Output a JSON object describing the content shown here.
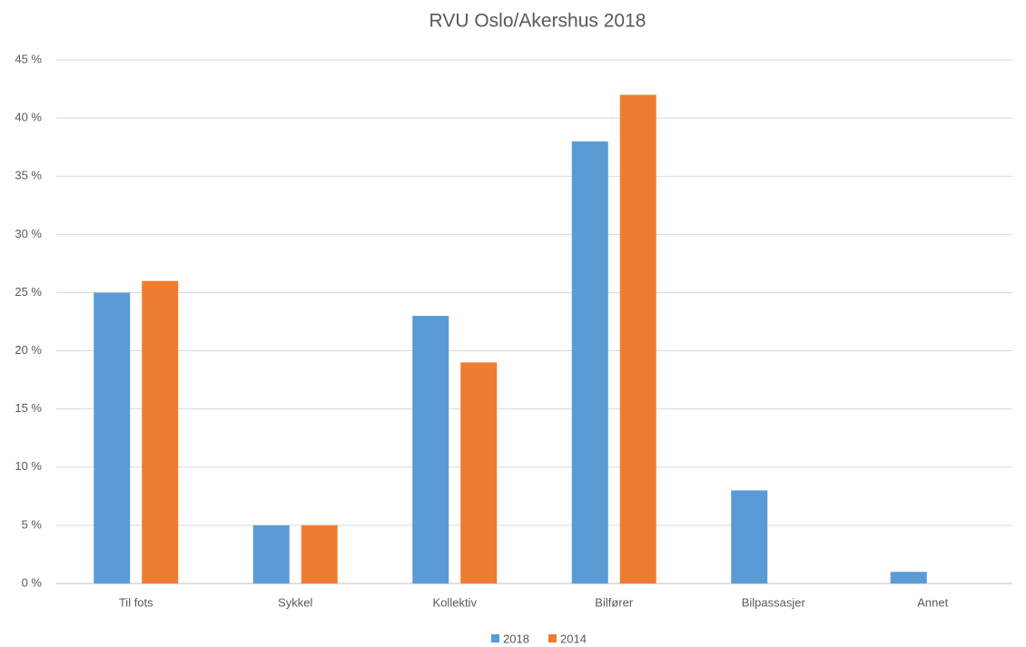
{
  "chart_data": {
    "type": "bar",
    "title": "RVU Oslo/Akershus 2018",
    "categories": [
      "Til fots",
      "Sykkel",
      "Kollektiv",
      "Bilfører",
      "Bilpassasjer",
      "Annet"
    ],
    "series": [
      {
        "name": "2018",
        "color": "#5b9bd5",
        "values": [
          25,
          5,
          23,
          38,
          8,
          1
        ]
      },
      {
        "name": "2014",
        "color": "#ed7d31",
        "values": [
          26,
          5,
          19,
          42,
          null,
          null
        ]
      }
    ],
    "ylim": [
      0,
      45
    ],
    "yticks": [
      {
        "value": 0,
        "label": "0 %"
      },
      {
        "value": 5,
        "label": "5 %"
      },
      {
        "value": 10,
        "label": "10 %"
      },
      {
        "value": 15,
        "label": "15 %"
      },
      {
        "value": 20,
        "label": "20 %"
      },
      {
        "value": 25,
        "label": "25 %"
      },
      {
        "value": 30,
        "label": "30 %"
      },
      {
        "value": 35,
        "label": "35 %"
      },
      {
        "value": 40,
        "label": "40 %"
      },
      {
        "value": 45,
        "label": "45 %"
      }
    ],
    "grid": true,
    "legend": "bottom"
  }
}
